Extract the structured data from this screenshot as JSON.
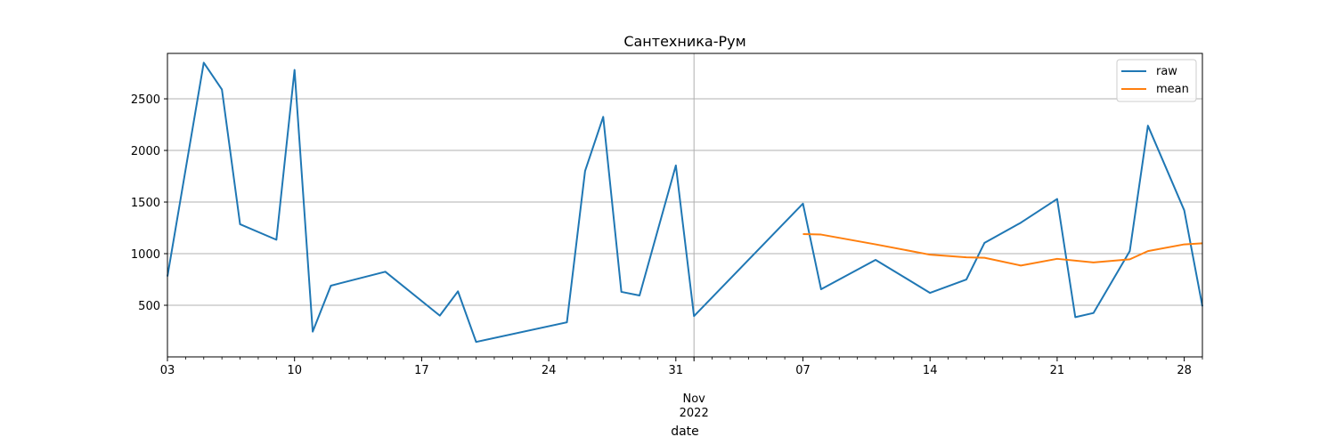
{
  "chart_data": {
    "type": "line",
    "title": "Сантехника-Рум",
    "xlabel": "date",
    "ylabel": "",
    "x_type": "date",
    "xlim": [
      "2022-10-03",
      "2022-11-29"
    ],
    "ylim": [
      0,
      2940
    ],
    "grid": true,
    "legend_position": "top-right",
    "x_ticks": [
      {
        "date": "2022-10-03",
        "label": "03"
      },
      {
        "date": "2022-10-10",
        "label": "10"
      },
      {
        "date": "2022-10-17",
        "label": "17"
      },
      {
        "date": "2022-10-24",
        "label": "24"
      },
      {
        "date": "2022-10-31",
        "label": "31"
      },
      {
        "date": "2022-11-07",
        "label": "07"
      },
      {
        "date": "2022-11-14",
        "label": "14"
      },
      {
        "date": "2022-11-21",
        "label": "21"
      },
      {
        "date": "2022-11-28",
        "label": "28"
      }
    ],
    "x_secondary_label": {
      "date": "2022-11-01",
      "lines": [
        "Nov",
        "2022"
      ]
    },
    "y_ticks": [
      500,
      1000,
      1500,
      2000,
      2500
    ],
    "series": [
      {
        "name": "raw",
        "color": "#1f77b4",
        "points": [
          [
            "2022-10-03",
            780
          ],
          [
            "2022-10-05",
            2850
          ],
          [
            "2022-10-06",
            2590
          ],
          [
            "2022-10-07",
            1285
          ],
          [
            "2022-10-09",
            1135
          ],
          [
            "2022-10-10",
            2780
          ],
          [
            "2022-10-11",
            245
          ],
          [
            "2022-10-12",
            690
          ],
          [
            "2022-10-15",
            825
          ],
          [
            "2022-10-18",
            400
          ],
          [
            "2022-10-19",
            635
          ],
          [
            "2022-10-20",
            145
          ],
          [
            "2022-10-25",
            335
          ],
          [
            "2022-10-26",
            1800
          ],
          [
            "2022-10-27",
            2325
          ],
          [
            "2022-10-28",
            630
          ],
          [
            "2022-10-29",
            595
          ],
          [
            "2022-10-31",
            1855
          ],
          [
            "2022-11-01",
            395
          ],
          [
            "2022-11-07",
            1485
          ],
          [
            "2022-11-08",
            655
          ],
          [
            "2022-11-11",
            940
          ],
          [
            "2022-11-14",
            620
          ],
          [
            "2022-11-16",
            750
          ],
          [
            "2022-11-17",
            1105
          ],
          [
            "2022-11-19",
            1300
          ],
          [
            "2022-11-21",
            1530
          ],
          [
            "2022-11-22",
            385
          ],
          [
            "2022-11-23",
            425
          ],
          [
            "2022-11-25",
            1025
          ],
          [
            "2022-11-26",
            2240
          ],
          [
            "2022-11-28",
            1420
          ],
          [
            "2022-11-29",
            490
          ]
        ]
      },
      {
        "name": "mean",
        "color": "#ff7f0e",
        "points": [
          [
            "2022-11-07",
            1190
          ],
          [
            "2022-11-08",
            1185
          ],
          [
            "2022-11-11",
            1090
          ],
          [
            "2022-11-14",
            990
          ],
          [
            "2022-11-16",
            965
          ],
          [
            "2022-11-17",
            960
          ],
          [
            "2022-11-19",
            885
          ],
          [
            "2022-11-21",
            950
          ],
          [
            "2022-11-23",
            915
          ],
          [
            "2022-11-25",
            945
          ],
          [
            "2022-11-26",
            1025
          ],
          [
            "2022-11-28",
            1090
          ],
          [
            "2022-11-29",
            1100
          ]
        ]
      }
    ]
  }
}
